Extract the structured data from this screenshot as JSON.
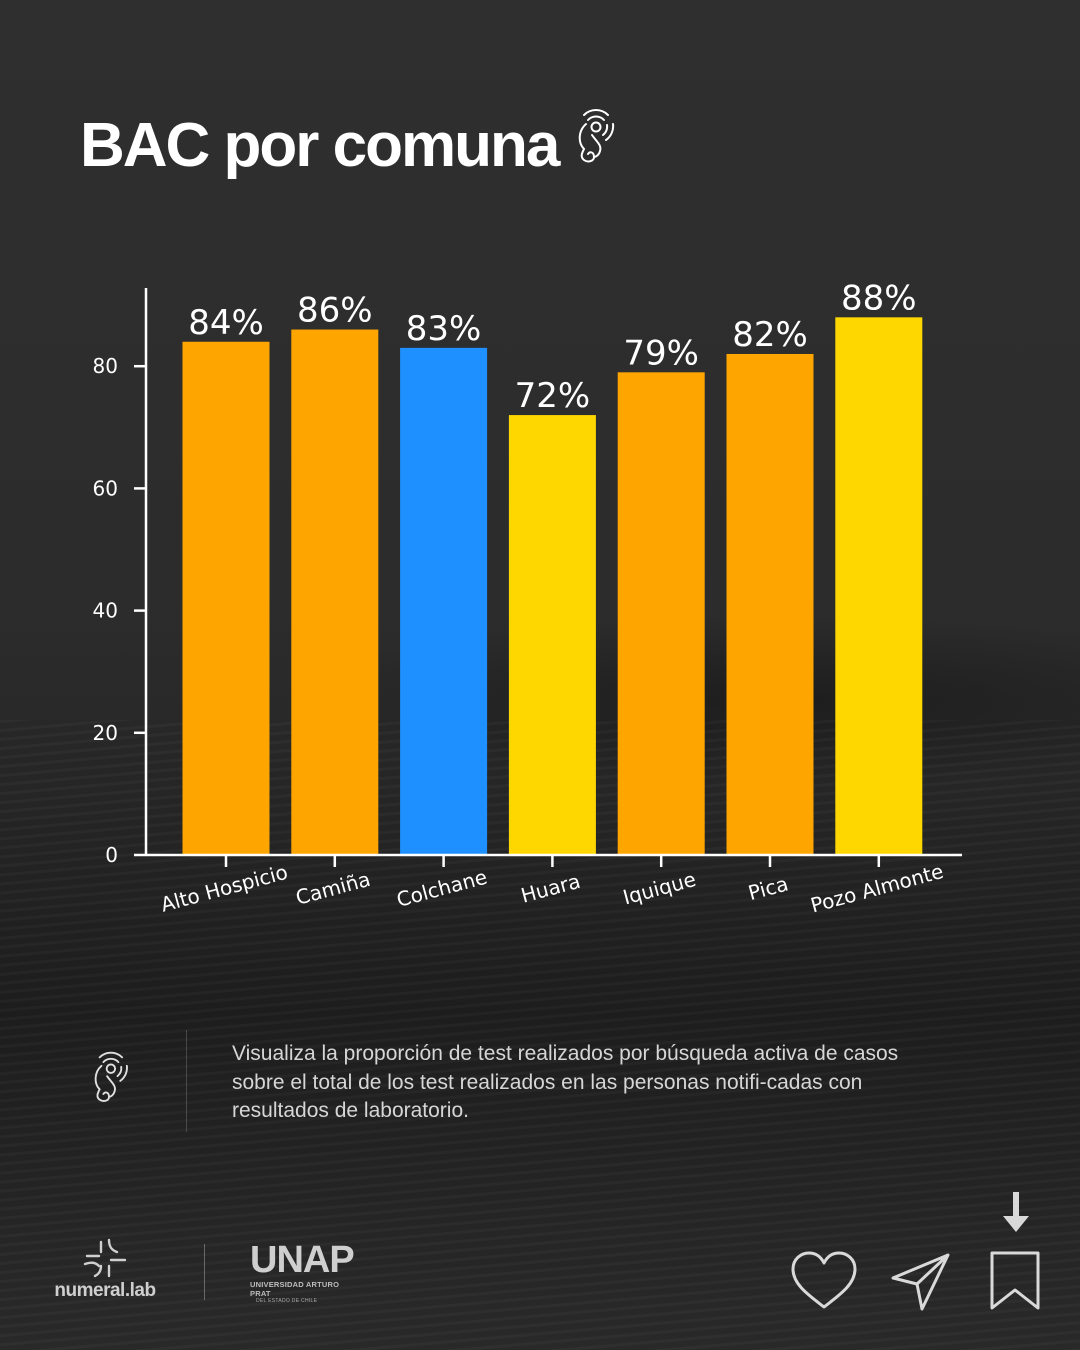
{
  "title": "BAC por comuna",
  "description": "Visualiza la proporción de test realizados por búsqueda activa de casos sobre el total de los test realizados en las personas notifi-cadas con resultados de laboratorio.",
  "brands": {
    "numeral": "numeral.lab",
    "unap": "UNAP",
    "unap_sub1": "UNIVERSIDAD ARTURO PRAT",
    "unap_sub2": "DEL ESTADO DE CHILE"
  },
  "icons": {
    "title": "virus-head-icon",
    "description": "virus-head-icon",
    "actions": [
      "heart-icon",
      "send-icon",
      "bookmark-icon",
      "arrow-down-icon"
    ]
  },
  "chart_data": {
    "type": "bar",
    "categories": [
      "Alto Hospicio",
      "Camiña",
      "Colchane",
      "Huara",
      "Iquique",
      "Pica",
      "Pozo Almonte"
    ],
    "values": [
      84,
      86,
      83,
      72,
      79,
      82,
      88
    ],
    "data_labels": [
      "84%",
      "86%",
      "83%",
      "72%",
      "79%",
      "82%",
      "88%"
    ],
    "colors": [
      "#FFA500",
      "#FFA500",
      "#1E90FF",
      "#FFD700",
      "#FFA500",
      "#FFA500",
      "#FFD700"
    ],
    "yticks": [
      "0",
      "20",
      "40",
      "60",
      "80"
    ],
    "ytick_values": [
      0,
      20,
      40,
      60,
      80
    ],
    "ylim": [
      0,
      90
    ],
    "grid": false,
    "legend": "none",
    "xlabel": "",
    "ylabel": ""
  }
}
